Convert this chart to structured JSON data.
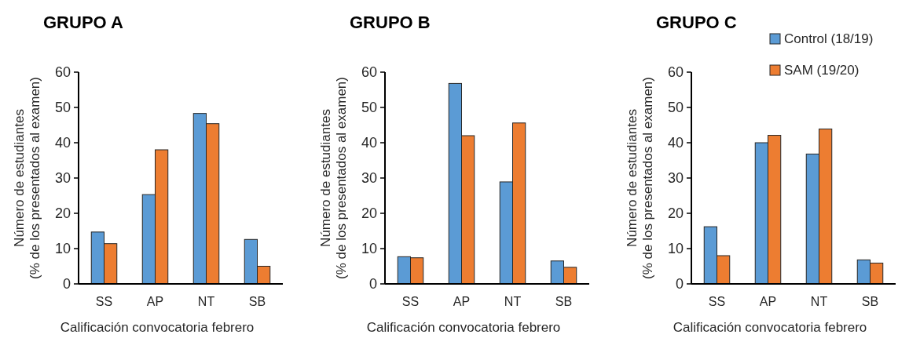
{
  "chart_data": [
    {
      "type": "bar",
      "title": "GRUPO A",
      "xlabel": "Calificación convocatoria febrero",
      "ylabel": "Número de estudiantes\n(% de los presentados al examen)",
      "categories": [
        "SS",
        "AP",
        "NT",
        "SB"
      ],
      "series": [
        {
          "color": "#5b9bd5",
          "values": [
            14.7,
            25.3,
            48.3,
            12.6
          ]
        },
        {
          "color": "#ed7d31",
          "values": [
            11.4,
            38,
            45.4,
            5
          ]
        }
      ],
      "ylim": [
        0,
        60
      ],
      "yticks": [
        0,
        10,
        20,
        30,
        40,
        50,
        60
      ],
      "grid": false,
      "legend": false
    },
    {
      "type": "bar",
      "title": "GRUPO B",
      "xlabel": "Calificación convocatoria febrero",
      "ylabel": "Número de estudiantes\n(% de los presentados al examen)",
      "categories": [
        "SS",
        "AP",
        "NT",
        "SB"
      ],
      "series": [
        {
          "color": "#5b9bd5",
          "values": [
            7.7,
            56.8,
            28.9,
            6.5
          ]
        },
        {
          "color": "#ed7d31",
          "values": [
            7.4,
            42,
            45.6,
            4.7
          ]
        }
      ],
      "ylim": [
        0,
        60
      ],
      "yticks": [
        0,
        10,
        20,
        30,
        40,
        50,
        60
      ],
      "grid": false,
      "legend": false
    },
    {
      "type": "bar",
      "title": "GRUPO C",
      "xlabel": "Calificación convocatoria febrero",
      "ylabel": "Número de estudiantes\n(% de los presentados al examen)",
      "categories": [
        "SS",
        "AP",
        "NT",
        "SB"
      ],
      "series": [
        {
          "name": "Control (18/19)",
          "color": "#5b9bd5",
          "values": [
            16.2,
            40,
            36.8,
            6.8
          ]
        },
        {
          "name": "SAM (19/20)",
          "color": "#ed7d31",
          "values": [
            8,
            42.1,
            43.9,
            5.9
          ]
        }
      ],
      "ylim": [
        0,
        60
      ],
      "yticks": [
        0,
        10,
        20,
        30,
        40,
        50,
        60
      ],
      "grid": false,
      "legend": "top right"
    }
  ]
}
